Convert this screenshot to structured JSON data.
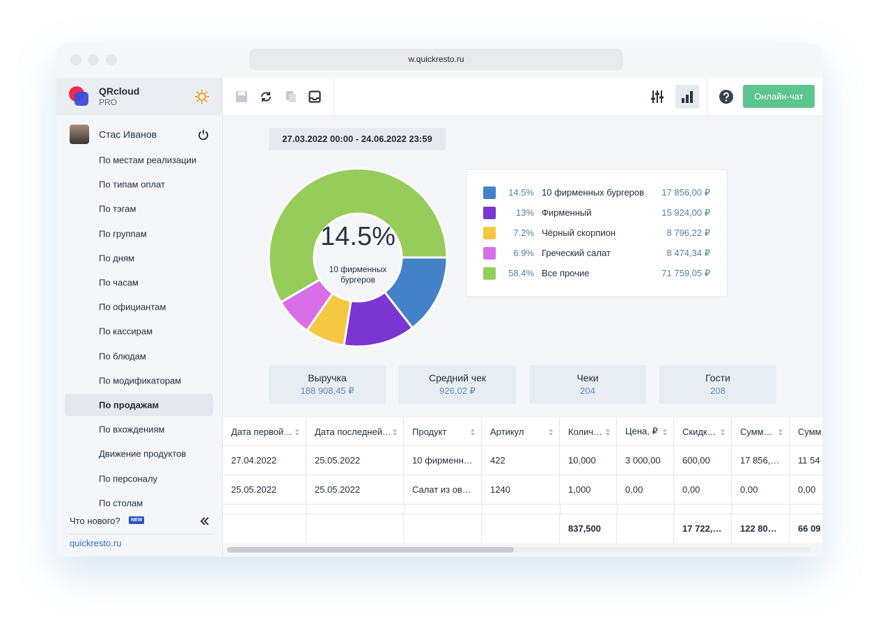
{
  "browser": {
    "url": "w.quickresto.ru"
  },
  "app": {
    "name": "QRcloud",
    "plan": "PRO"
  },
  "user": {
    "name": "Стас Иванов"
  },
  "menu": {
    "items": [
      "По местам реализации",
      "По типам оплат",
      "По тэгам",
      "По группам",
      "По дням",
      "По часам",
      "По официантам",
      "По кассирам",
      "По блюдам",
      "По модификаторам",
      "По продажам",
      "По вхождениям",
      "Движение продуктов",
      "По персоналу",
      "По столам"
    ],
    "active": 10
  },
  "sidebar_footer": {
    "whats_new": "Что нового?",
    "badge": "NEW",
    "link": "quickresto.ru"
  },
  "toolbar": {
    "chat_button": "Онлайн-чат"
  },
  "date_range": "27.03.2022 00:00 - 24.06.2022 23:59",
  "chart_data": {
    "type": "pie",
    "donut": true,
    "categories": [
      "10 фирменных бургеров",
      "Фирменный",
      "Чёрный скорпион",
      "Греческий салат",
      "Все прочие"
    ],
    "values": [
      14.5,
      13,
      7.2,
      6.9,
      58.4
    ],
    "value_labels": [
      "14.5%",
      "13%",
      "7.2%",
      "6.9%",
      "58.4%"
    ],
    "amounts": [
      "17 856,00 ₽",
      "15 924,00 ₽",
      "8 796,22 ₽",
      "8 474,34 ₽",
      "71 759,05 ₽"
    ],
    "colors": [
      "#4381c8",
      "#7b36d1",
      "#f5c842",
      "#d86ee8",
      "#96cd5a"
    ]
  },
  "stats": [
    {
      "label": "Выручка",
      "value": "188 908,45 ₽"
    },
    {
      "label": "Средний чек",
      "value": "926,02 ₽"
    },
    {
      "label": "Чеки",
      "value": "204"
    },
    {
      "label": "Гости",
      "value": "208"
    }
  ],
  "table": {
    "headers": [
      "Дата первой…",
      "Дата последней…",
      "Продукт",
      "Артикул",
      "Колич…",
      "Цена, ₽",
      "Скидк…",
      "Сумм…",
      "Сумм."
    ],
    "rows": [
      [
        "27.04.2022",
        "25.05.2022",
        "10 фирменн…",
        "422",
        "10,000",
        "3 000,00",
        "600,00",
        "17 856,…",
        "11 54"
      ],
      [
        "25.05.2022",
        "25.05.2022",
        "Салат из ов…",
        "1240",
        "1,000",
        "0,00",
        "0,00",
        "0,00",
        "0,00"
      ]
    ],
    "totals": [
      null,
      null,
      null,
      null,
      "837,500",
      null,
      "17 722,…",
      "122 80…",
      "66 09"
    ]
  }
}
